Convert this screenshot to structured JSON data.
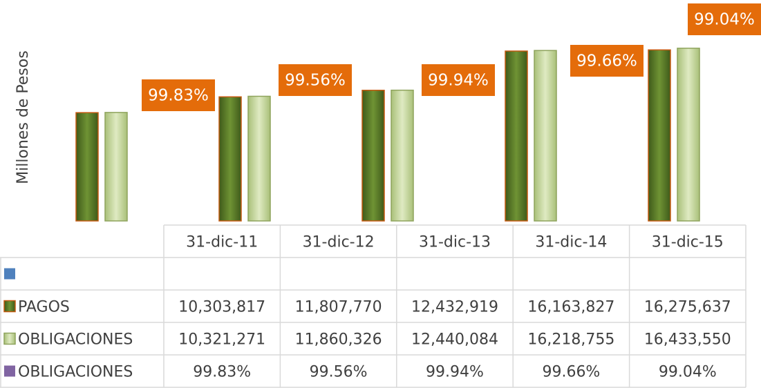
{
  "chart_data": {
    "type": "bar",
    "y_label": "Millones de Pesos",
    "categories": [
      "31-dic-11",
      "31-dic-12",
      "31-dic-13",
      "31-dic-14",
      "31-dic-15"
    ],
    "ylim": [
      0,
      18000000
    ],
    "series": [
      {
        "color": "#4f81bd",
        "values": [
          null,
          null,
          null,
          null,
          null
        ]
      },
      {
        "name": "PAGOS",
        "color": "#5f7f2c",
        "values": [
          10303817,
          11807770,
          12432919,
          16163827,
          16275637
        ],
        "value_labels": [
          "10,303,817",
          "11,807,770",
          "12,432,919",
          "16,163,827",
          "16,275,637"
        ]
      },
      {
        "name": "OBLIGACIONES",
        "color": "#c4d79b",
        "values": [
          10321271,
          11860326,
          12440084,
          16218755,
          16433550
        ],
        "value_labels": [
          "10,321,271",
          "11,860,326",
          "12,440,084",
          "16,218,755",
          "16,433,550"
        ]
      },
      {
        "name": "OBLIGACIONES",
        "color": "#8064a2",
        "label_color": "#e46c0a",
        "values": [
          99.83,
          99.56,
          99.94,
          99.66,
          99.04
        ],
        "value_labels": [
          "99.83%",
          "99.56%",
          "99.94%",
          "99.66%",
          "99.04%"
        ]
      }
    ]
  }
}
